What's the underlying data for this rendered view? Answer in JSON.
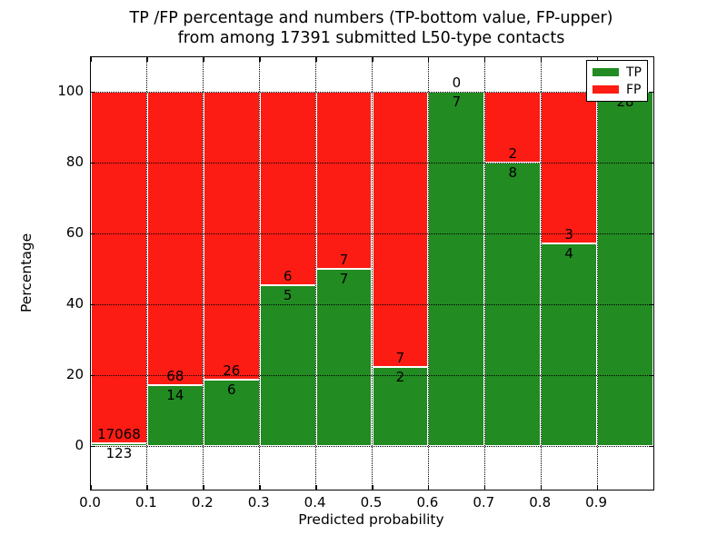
{
  "title": {
    "line1": "TP /FP percentage and numbers (TP-bottom value, FP-upper)",
    "line2": "from among 17391 submitted L50-type contacts"
  },
  "x_axis": {
    "label": "Predicted probability",
    "ticks": [
      "0.0",
      "0.1",
      "0.2",
      "0.3",
      "0.4",
      "0.5",
      "0.6",
      "0.7",
      "0.8",
      "0.9"
    ]
  },
  "y_axis": {
    "label": "Percentage",
    "ticks": [
      "0",
      "20",
      "40",
      "60",
      "80",
      "100"
    ]
  },
  "legend": {
    "items": [
      {
        "label": "TP",
        "color": "#228b22"
      },
      {
        "label": "FP",
        "color": "#fc1c13"
      }
    ]
  },
  "colors": {
    "tp": "#228b22",
    "fp": "#fc1c13",
    "bar_edge": "#ffffff",
    "grid": "#000000"
  },
  "chart_data": {
    "type": "bar",
    "stacked": true,
    "normalized": "percent",
    "title": "TP /FP percentage and numbers (TP-bottom value, FP-upper) from among 17391 submitted L50-type contacts",
    "xlabel": "Predicted probability",
    "ylabel": "Percentage",
    "total_contacts": 17391,
    "x_bins": [
      [
        0.0,
        0.1
      ],
      [
        0.1,
        0.2
      ],
      [
        0.2,
        0.3
      ],
      [
        0.3,
        0.4
      ],
      [
        0.4,
        0.5
      ],
      [
        0.5,
        0.6
      ],
      [
        0.6,
        0.7
      ],
      [
        0.7,
        0.8
      ],
      [
        0.8,
        0.9
      ],
      [
        0.9,
        1.0
      ]
    ],
    "categories": [
      "0.0",
      "0.1",
      "0.2",
      "0.3",
      "0.4",
      "0.5",
      "0.6",
      "0.7",
      "0.8",
      "0.9"
    ],
    "series": [
      {
        "name": "TP",
        "color": "#228b22",
        "counts": [
          123,
          14,
          6,
          5,
          7,
          2,
          7,
          8,
          4,
          28
        ]
      },
      {
        "name": "FP",
        "color": "#fc1c13",
        "counts": [
          17068,
          68,
          26,
          6,
          7,
          7,
          0,
          2,
          3,
          0
        ]
      }
    ],
    "tp_percent": [
      0.72,
      17.07,
      18.75,
      45.45,
      50.0,
      22.22,
      100.0,
      80.0,
      57.14,
      100.0
    ],
    "y_tick_values": [
      0,
      20,
      40,
      60,
      80,
      100
    ],
    "grid": true,
    "legend_position": "upper right"
  }
}
